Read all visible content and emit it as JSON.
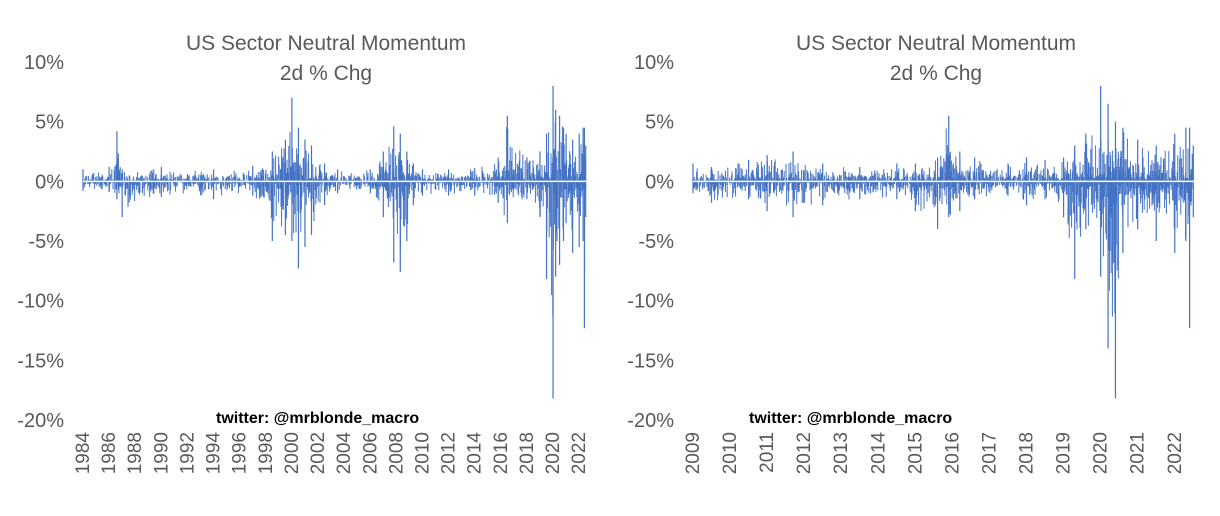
{
  "colors": {
    "series": "#4472C4",
    "zero_line": "#ffffff",
    "text": "#595959",
    "credit": "#000000"
  },
  "chart_data": [
    {
      "type": "bar",
      "title": "US Sector Neutral Momentum",
      "subtitle": "2d % Chg",
      "credit": "twitter: @mrblonde_macro",
      "ylim": [
        -20,
        10
      ],
      "yticks": [
        10,
        5,
        0,
        -5,
        -10,
        -15,
        -20
      ],
      "ytick_labels": [
        "10%",
        "5%",
        "0%",
        "-5%",
        "-10%",
        "-15%",
        "-20%"
      ],
      "x_range": [
        1984,
        2022.6
      ],
      "xticks": [
        1984,
        1986,
        1988,
        1990,
        1992,
        1994,
        1996,
        1998,
        2000,
        2002,
        2004,
        2006,
        2008,
        2010,
        2012,
        2014,
        2016,
        2018,
        2020,
        2022
      ],
      "xtick_labels": [
        "1984",
        "1986",
        "1988",
        "1990",
        "1992",
        "1994",
        "1996",
        "1998",
        "2000",
        "2002",
        "2004",
        "2006",
        "2008",
        "2010",
        "2012",
        "2014",
        "2016",
        "2018",
        "2020",
        "2022"
      ],
      "grid": false,
      "legend": "none",
      "envelope": {
        "x": [
          1984,
          1986,
          1986.6,
          1987,
          1990,
          1994,
          1997,
          1998.5,
          1999.5,
          2000,
          2000.5,
          2001,
          2001.5,
          2002.5,
          2003.5,
          2006,
          2007,
          2007.8,
          2008.3,
          2008.8,
          2009.3,
          2010,
          2012,
          2014,
          2015.8,
          2016.5,
          2018,
          2019,
          2019.5,
          2020,
          2020.2,
          2020.5,
          2020.8,
          2021,
          2021.5,
          2022,
          2022.3,
          2022.4,
          2022.5
        ],
        "upper": [
          1.0,
          1.2,
          4.2,
          1.0,
          1.2,
          1.0,
          1.3,
          2.5,
          3.5,
          7.0,
          4.5,
          3.5,
          3.0,
          1.5,
          1.0,
          1.0,
          2.5,
          4.6,
          4.0,
          2.5,
          1.5,
          1.0,
          1.0,
          1.1,
          2.0,
          5.5,
          2.0,
          2.5,
          4.0,
          8.0,
          6.0,
          5.5,
          4.5,
          4.0,
          3.5,
          4.0,
          4.5,
          4.5,
          3.0
        ],
        "lower": [
          -0.8,
          -0.9,
          -1.5,
          -3.0,
          -1.3,
          -1.5,
          -1.2,
          -5.0,
          -4.5,
          -5.0,
          -7.3,
          -5.5,
          -4.5,
          -2.0,
          -1.0,
          -1.0,
          -3.0,
          -6.8,
          -7.6,
          -5.0,
          -2.0,
          -1.2,
          -1.2,
          -1.2,
          -1.8,
          -3.5,
          -1.5,
          -3.0,
          -8.2,
          -18.2,
          -8.0,
          -7.0,
          -5.0,
          -3.5,
          -6.0,
          -5.5,
          -5.0,
          -12.3,
          -3.0
        ]
      }
    },
    {
      "type": "bar",
      "title": "US Sector Neutral Momentum",
      "subtitle": "2d % Chg",
      "credit": "twitter: @mrblonde_macro",
      "ylim": [
        -20,
        10
      ],
      "yticks": [
        10,
        5,
        0,
        -5,
        -10,
        -15,
        -20
      ],
      "ytick_labels": [
        "10%",
        "5%",
        "0%",
        "-5%",
        "-10%",
        "-15%",
        "-20%"
      ],
      "x_range": [
        2009,
        2022.6
      ],
      "xticks": [
        2009,
        2010,
        2011,
        2012,
        2013,
        2014,
        2015,
        2016,
        2017,
        2018,
        2019,
        2020,
        2021,
        2022
      ],
      "xtick_labels": [
        "2009",
        "2010",
        "2011",
        "2012",
        "2013",
        "2014",
        "2015",
        "2016",
        "2017",
        "2018",
        "2019",
        "2020",
        "2021",
        "2022"
      ],
      "grid": false,
      "legend": "none",
      "envelope": {
        "x": [
          2009,
          2009.5,
          2010.5,
          2011,
          2011.7,
          2012.5,
          2013.5,
          2014.5,
          2015,
          2015.6,
          2015.9,
          2016.2,
          2016.6,
          2017.5,
          2018,
          2018.5,
          2019,
          2019.3,
          2019.6,
          2020,
          2020.2,
          2020.4,
          2020.6,
          2021,
          2021.5,
          2022,
          2022.3,
          2022.4,
          2022.5
        ],
        "upper": [
          1.5,
          1.2,
          1.8,
          2.2,
          2.5,
          1.5,
          1.2,
          1.5,
          1.5,
          2.0,
          5.5,
          2.5,
          2.0,
          1.5,
          2.0,
          1.8,
          2.0,
          3.0,
          4.0,
          8.0,
          6.5,
          5.0,
          4.5,
          3.5,
          3.0,
          4.0,
          4.5,
          4.5,
          3.0
        ],
        "lower": [
          -1.0,
          -1.8,
          -1.5,
          -2.5,
          -3.0,
          -2.0,
          -1.5,
          -1.5,
          -2.5,
          -4.0,
          -3.0,
          -2.5,
          -1.5,
          -1.2,
          -2.0,
          -1.5,
          -3.0,
          -8.2,
          -4.0,
          -8.0,
          -14.0,
          -18.2,
          -6.0,
          -4.0,
          -5.0,
          -6.0,
          -5.0,
          -12.3,
          -3.0
        ]
      }
    }
  ]
}
